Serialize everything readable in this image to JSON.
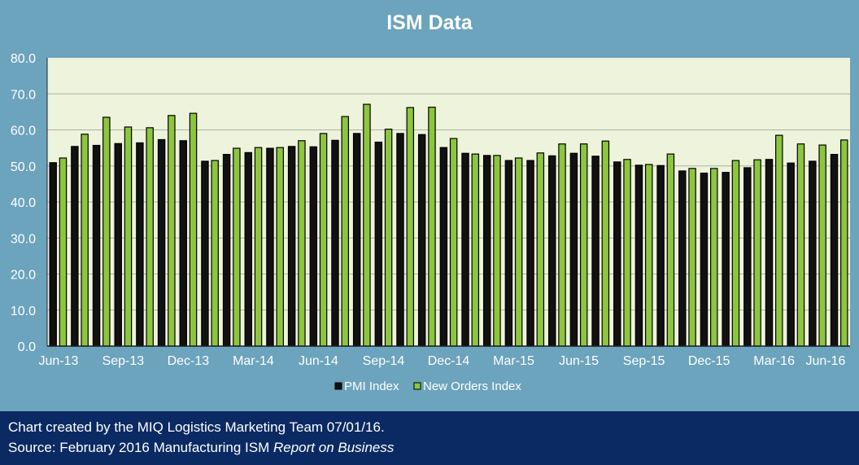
{
  "chart_data": {
    "type": "bar",
    "title": "ISM Data",
    "categories": [
      "Jun-13",
      "Jul-13",
      "Aug-13",
      "Sep-13",
      "Oct-13",
      "Nov-13",
      "Dec-13",
      "Jan-14",
      "Feb-14",
      "Mar-14",
      "Apr-14",
      "May-14",
      "Jun-14",
      "Jul-14",
      "Aug-14",
      "Sep-14",
      "Oct-14",
      "Nov-14",
      "Dec-14",
      "Jan-15",
      "Feb-15",
      "Mar-15",
      "Apr-15",
      "May-15",
      "Jun-15",
      "Jul-15",
      "Aug-15",
      "Sep-15",
      "Oct-15",
      "Nov-15",
      "Dec-15",
      "Jan-16",
      "Feb-16",
      "Mar-16",
      "Apr-16",
      "May-16",
      "Jun-16"
    ],
    "tick_labels": [
      "Jun-13",
      "Sep-13",
      "Dec-13",
      "Mar-14",
      "Jun-14",
      "Sep-14",
      "Dec-14",
      "Mar-15",
      "Jun-15",
      "Sep-15",
      "Dec-15",
      "Mar-16",
      "Jun-16"
    ],
    "series": [
      {
        "name": "PMI Index",
        "color": "#111111",
        "values": [
          50.9,
          55.4,
          55.7,
          56.2,
          56.4,
          57.3,
          57.0,
          51.3,
          53.2,
          53.7,
          54.9,
          55.4,
          55.3,
          57.1,
          59.0,
          56.6,
          59.0,
          58.7,
          55.1,
          53.5,
          52.9,
          51.5,
          51.5,
          52.8,
          53.5,
          52.7,
          51.1,
          50.2,
          50.1,
          48.6,
          48.0,
          48.2,
          49.5,
          51.8,
          50.8,
          51.3,
          53.2
        ]
      },
      {
        "name": "New Orders Index",
        "color": "#8cc63f",
        "values": [
          52.2,
          58.8,
          63.5,
          60.8,
          60.6,
          64.0,
          64.6,
          51.5,
          54.9,
          55.1,
          55.1,
          57.0,
          59.0,
          63.7,
          67.1,
          60.2,
          66.2,
          66.3,
          57.6,
          53.3,
          52.9,
          52.2,
          53.6,
          56.1,
          56.1,
          56.9,
          51.8,
          50.4,
          53.3,
          49.3,
          49.3,
          51.5,
          51.7,
          58.5,
          56.1,
          55.8,
          57.2
        ]
      }
    ],
    "ylim": [
      0,
      80
    ],
    "yticks": [
      "0.0",
      "10.0",
      "20.0",
      "30.0",
      "40.0",
      "50.0",
      "60.0",
      "70.0",
      "80.0"
    ],
    "grid": true,
    "legend_position": "bottom"
  },
  "footer": {
    "line1": "Chart created by the MIQ Logistics Marketing Team 07/01/16.",
    "line2_prefix": "Source: February 2016 Manufacturing ISM ",
    "line2_italic": "Report on Business"
  },
  "colors": {
    "background": "#6ca3bd",
    "plot_area": "#eef3dc",
    "footer": "#0b2a63"
  }
}
